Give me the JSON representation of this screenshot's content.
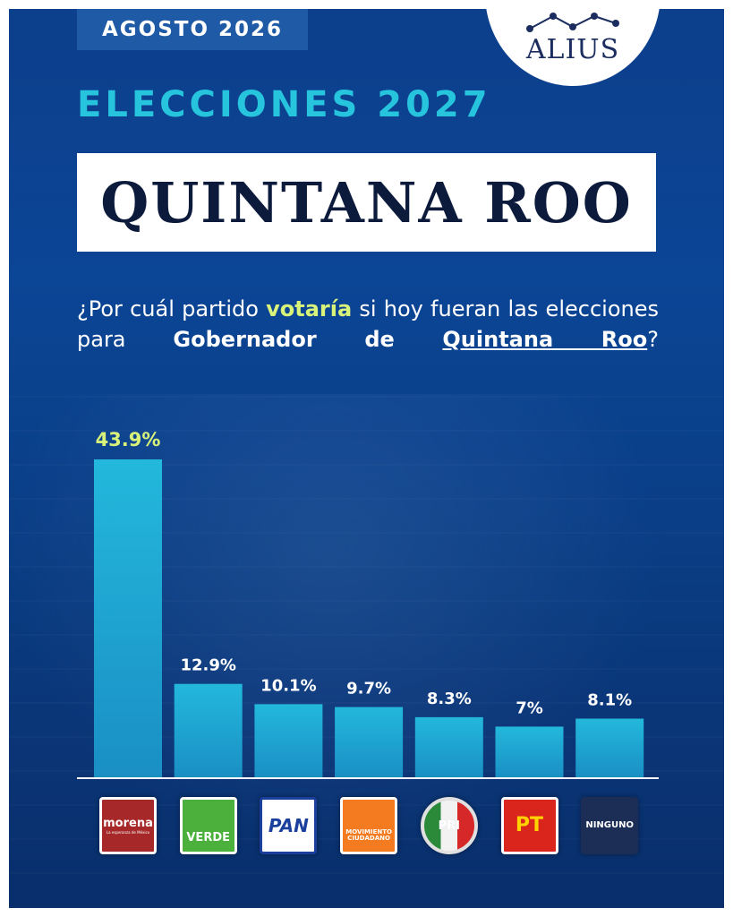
{
  "header": {
    "date_tab": "AGOSTO 2026",
    "logo_text": "ALIUS",
    "kicker": "ELECCIONES 2027",
    "title": "QUINTANA ROO"
  },
  "question": {
    "part1": "¿Por cuál partido ",
    "highlight": "votaría",
    "part2": " si hoy fueran las elecciones para ",
    "bold": "Gobernador de ",
    "underlined": "Quintana Roo",
    "end": "?"
  },
  "colors": {
    "bar": "#23b8dc",
    "bar_dark": "#1a8fc4",
    "first_label": "#d9f27a",
    "kicker": "#27c4dd"
  },
  "parties": [
    {
      "label": "morena",
      "sublabel": "La esperanza de México",
      "bg": "#ffffff",
      "inner": "#a62828",
      "fg": "#ffffff"
    },
    {
      "label": "VERDE",
      "sublabel": "",
      "bg": "#ffffff",
      "inner": "#4bb13c",
      "fg": "#ffffff"
    },
    {
      "label": "PAN",
      "sublabel": "",
      "bg": "#ffffff",
      "inner": "#ffffff",
      "fg": "#1b3f9c"
    },
    {
      "label": "MOVIMIENTO CIUDADANO",
      "sublabel": "",
      "bg": "#ffffff",
      "inner": "#f47b20",
      "fg": "#ffffff"
    },
    {
      "label": "PRI",
      "sublabel": "",
      "bg": "#ffffff",
      "inner": "#e9e9e9",
      "fg": "#ffffff"
    },
    {
      "label": "PT",
      "sublabel": "",
      "bg": "#ffffff",
      "inner": "#d9251c",
      "fg": "#ffd200"
    },
    {
      "label": "NINGUNO",
      "sublabel": "",
      "bg": "#1c2e55",
      "inner": "#1c2e55",
      "fg": "#ffffff"
    }
  ],
  "chart_data": {
    "type": "bar",
    "categories": [
      "morena",
      "VERDE",
      "PAN",
      "MOVIMIENTO CIUDADANO",
      "PRI",
      "PT",
      "NINGUNO"
    ],
    "values": [
      43.9,
      12.9,
      10.1,
      9.7,
      8.3,
      7,
      8.1
    ],
    "data_labels": [
      "43.9%",
      "12.9%",
      "10.1%",
      "9.7%",
      "8.3%",
      "7%",
      "8.1%"
    ],
    "title": "¿Por cuál partido votaría si hoy fueran las elecciones para Gobernador de Quintana Roo?",
    "xlabel": "",
    "ylabel": "",
    "ylim": [
      0,
      45
    ],
    "grid": false,
    "legend": "none"
  }
}
